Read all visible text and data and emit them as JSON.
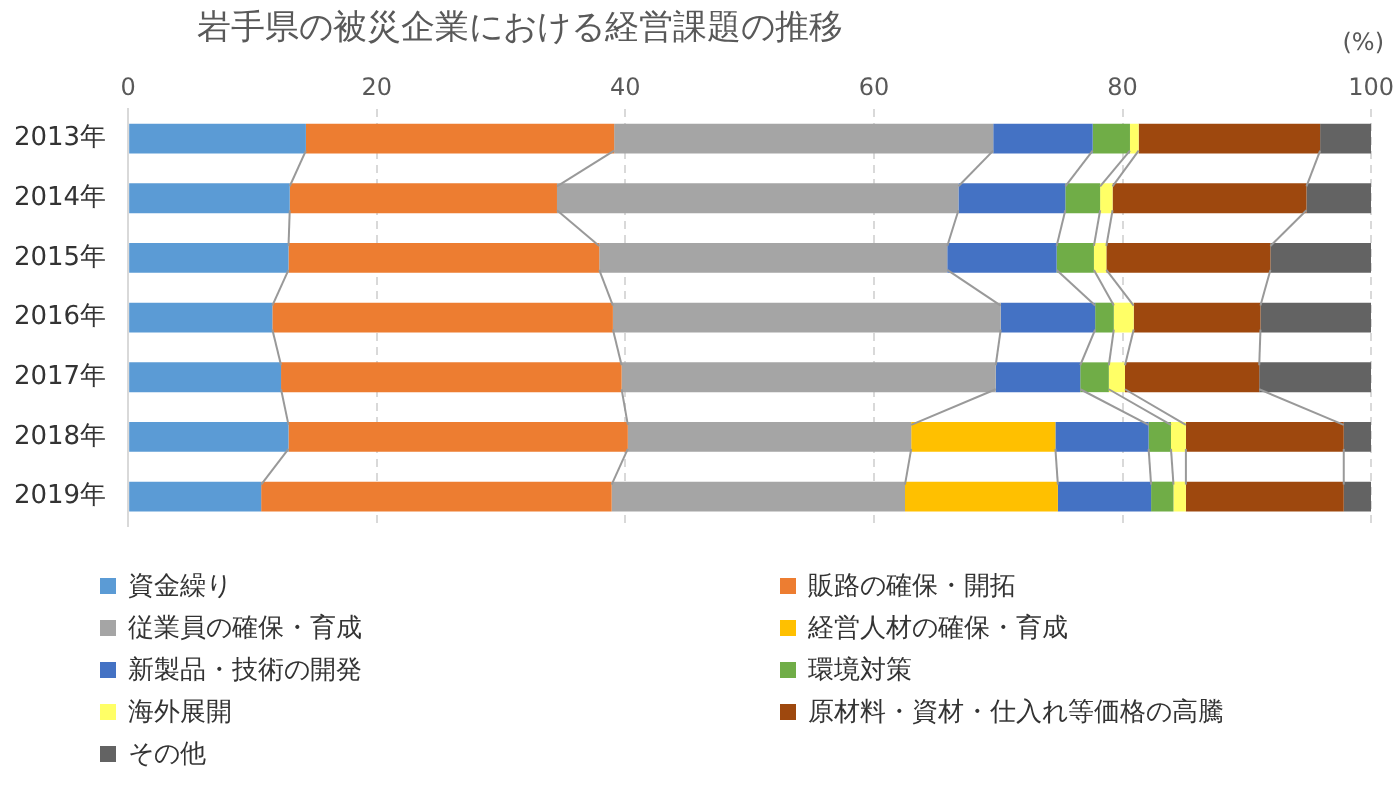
{
  "chart_data": {
    "type": "bar",
    "orientation": "horizontal",
    "stacked": true,
    "title": "岩手県の被災企業における経営課題の推移",
    "annotations": [
      "(%)"
    ],
    "categories": [
      "2013年",
      "2014年",
      "2015年",
      "2016年",
      "2017年",
      "2018年",
      "2019年"
    ],
    "series": [
      {
        "name": "資金繰り",
        "color": "#5b9bd5",
        "values": [
          14.3,
          13.0,
          12.9,
          11.6,
          12.3,
          12.9,
          10.7
        ]
      },
      {
        "name": "販路の確保・開拓",
        "color": "#ed7d31",
        "values": [
          24.8,
          21.5,
          25.0,
          27.4,
          27.4,
          27.3,
          28.2
        ]
      },
      {
        "name": "従業員の確保・育成",
        "color": "#a5a5a5",
        "values": [
          30.5,
          32.3,
          28.0,
          31.2,
          30.1,
          22.8,
          23.6
        ]
      },
      {
        "name": "経営人材の確保・育成",
        "color": "#ffc000",
        "values": [
          null,
          null,
          null,
          null,
          null,
          11.6,
          12.3
        ]
      },
      {
        "name": "新製品・技術の開発",
        "color": "#4472c4",
        "values": [
          8.0,
          8.6,
          8.8,
          7.6,
          6.8,
          7.5,
          7.5
        ]
      },
      {
        "name": "環境対策",
        "color": "#70ad47",
        "values": [
          3.0,
          2.8,
          3.0,
          1.5,
          2.3,
          1.8,
          1.8
        ]
      },
      {
        "name": "海外展開",
        "color": "#ffff66",
        "values": [
          0.7,
          1.0,
          1.0,
          1.6,
          1.3,
          1.2,
          1.0
        ]
      },
      {
        "name": "原材料・資材・仕入れ等価格の高騰",
        "color": "#9e480e",
        "values": [
          14.6,
          15.6,
          13.2,
          10.2,
          10.8,
          12.7,
          12.7
        ]
      },
      {
        "name": "その他",
        "color": "#636363",
        "values": [
          4.1,
          5.2,
          8.1,
          8.9,
          9.0,
          2.2,
          2.2
        ]
      }
    ],
    "xlim": [
      0,
      100
    ],
    "xticks": [
      0,
      20,
      40,
      60,
      80,
      100
    ],
    "grid": "x",
    "legend": "bottom"
  }
}
